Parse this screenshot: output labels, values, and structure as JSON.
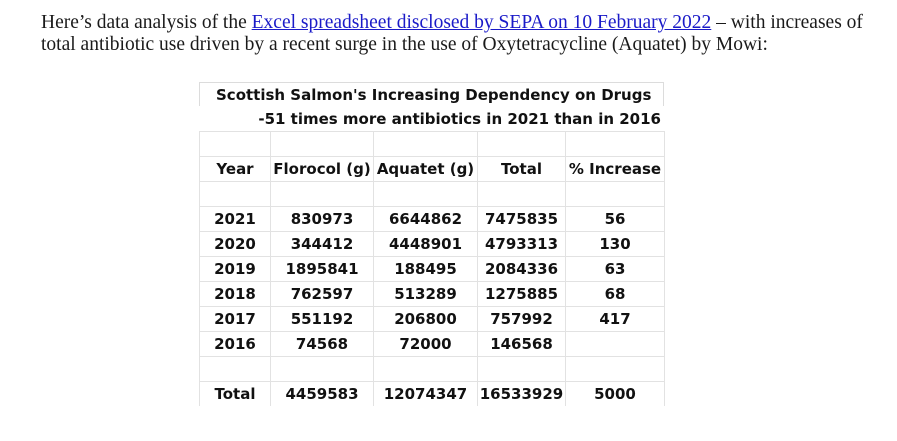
{
  "intro": {
    "text_before_link": "Here’s data analysis of the ",
    "link_text": "Excel spreadsheet disclosed by SEPA on 10 February 2022",
    "text_after_link": " – with increases of total antibiotic use driven by a recent surge in the use of Oxytetracycline (Aquatet) by Mowi:",
    "link_color": "#1a1ac8"
  },
  "table": {
    "title": "Scottish Salmon's Increasing Dependency on Drugs",
    "subtitle": "-51 times more antibiotics in 2021 than in 2016",
    "headers": [
      "Year",
      "Florocol (g)",
      "Aquatet (g)",
      "Total",
      "% Increase"
    ],
    "rows": [
      [
        "2021",
        "830973",
        "6644862",
        "7475835",
        "56"
      ],
      [
        "2020",
        "344412",
        "4448901",
        "4793313",
        "130"
      ],
      [
        "2019",
        "1895841",
        "188495",
        "2084336",
        "63"
      ],
      [
        "2018",
        "762597",
        "513289",
        "1275885",
        "68"
      ],
      [
        "2017",
        "551192",
        "206800",
        "757992",
        "417"
      ],
      [
        "2016",
        "74568",
        "72000",
        "146568",
        ""
      ]
    ],
    "total": [
      "Total",
      "4459583",
      "12074347",
      "16533929",
      "5000"
    ]
  }
}
